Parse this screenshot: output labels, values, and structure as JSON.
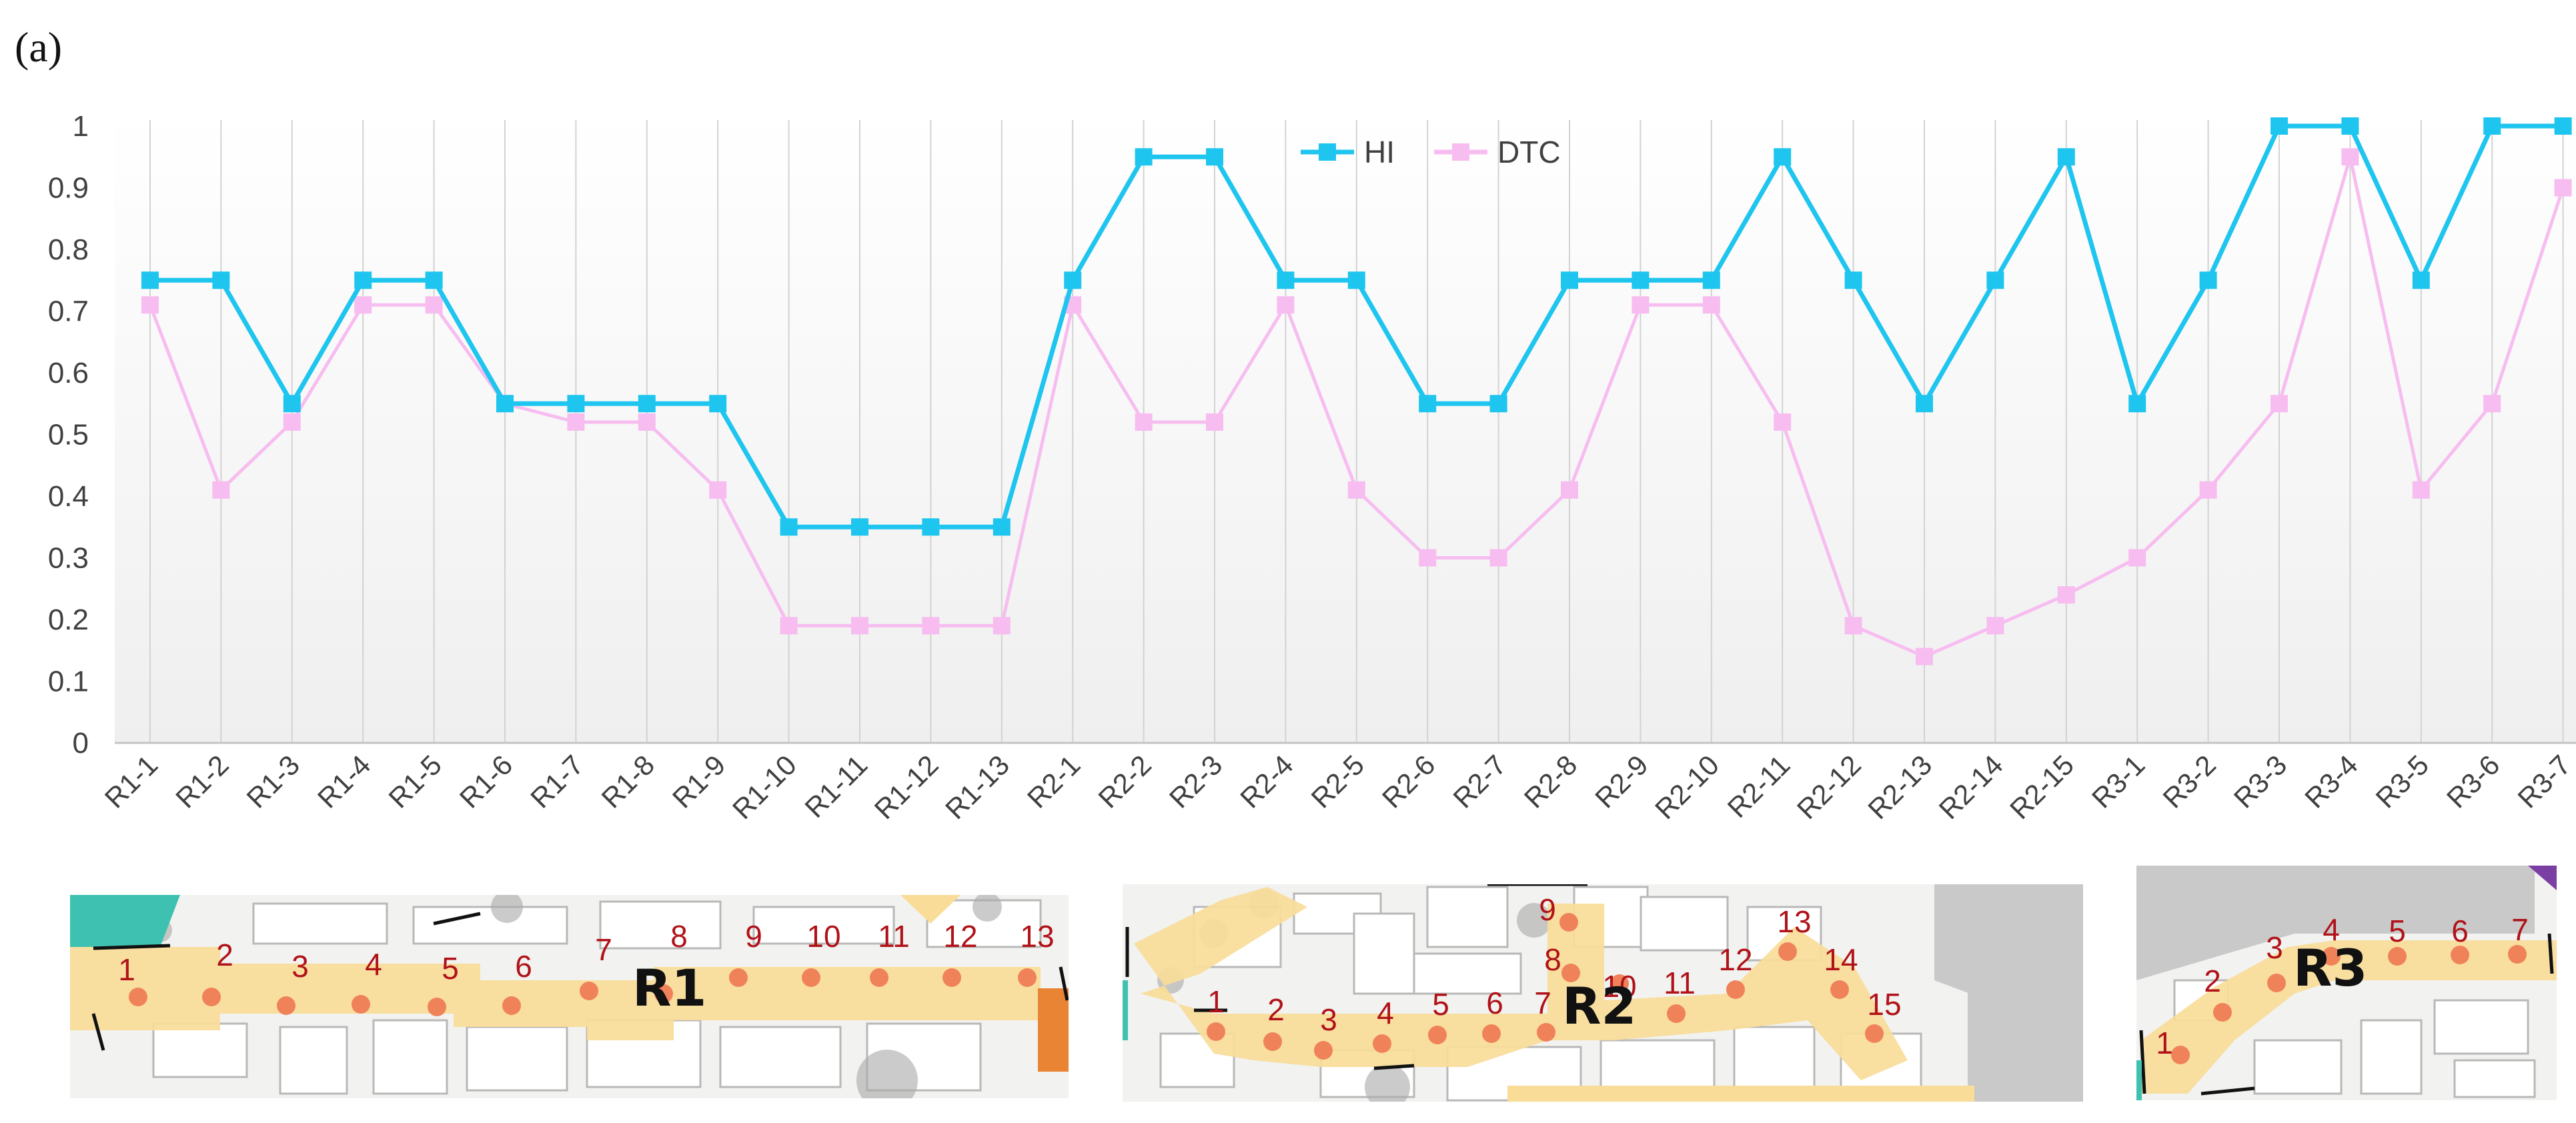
{
  "panel_label": "(a)",
  "chart_data": {
    "type": "line",
    "title": "",
    "xlabel": "",
    "ylabel": "",
    "ylim": [
      0,
      1
    ],
    "yticks": [
      "0",
      "0.1",
      "0.2",
      "0.3",
      "0.4",
      "0.5",
      "0.6",
      "0.7",
      "0.8",
      "0.9",
      "1"
    ],
    "grid": "vertical lines at categories",
    "legend_position": "top-center",
    "categories": [
      "R1-1",
      "R1-2",
      "R1-3",
      "R1-4",
      "R1-5",
      "R1-6",
      "R1-7",
      "R1-8",
      "R1-9",
      "R1-10",
      "R1-11",
      "R1-12",
      "R1-13",
      "R2-1",
      "R2-2",
      "R2-3",
      "R2-4",
      "R2-5",
      "R2-6",
      "R2-7",
      "R2-8",
      "R2-9",
      "R2-10",
      "R2-11",
      "R2-12",
      "R2-13",
      "R2-14",
      "R2-15",
      "R3-1",
      "R3-2",
      "R3-3",
      "R3-4",
      "R3-5",
      "R3-6",
      "R3-7"
    ],
    "series": [
      {
        "name": "HI",
        "color": "#1ec5ef",
        "marker": "square",
        "values": [
          0.75,
          0.75,
          0.55,
          0.75,
          0.75,
          0.55,
          0.55,
          0.55,
          0.55,
          0.35,
          0.35,
          0.35,
          0.35,
          0.75,
          0.95,
          0.95,
          0.75,
          0.75,
          0.55,
          0.55,
          0.75,
          0.75,
          0.75,
          0.95,
          0.75,
          0.55,
          0.75,
          0.95,
          0.55,
          0.75,
          1.0,
          1.0,
          0.75,
          1.0,
          1.0
        ]
      },
      {
        "name": "DTC",
        "color": "#f7bdf0",
        "marker": "square",
        "values": [
          0.71,
          0.41,
          0.52,
          0.71,
          0.71,
          0.55,
          0.52,
          0.52,
          0.41,
          0.19,
          0.19,
          0.19,
          0.19,
          0.71,
          0.52,
          0.52,
          0.71,
          0.41,
          0.3,
          0.3,
          0.41,
          0.71,
          0.71,
          0.52,
          0.19,
          0.14,
          0.19,
          0.24,
          0.3,
          0.41,
          0.55,
          0.95,
          0.41,
          0.55,
          0.9
        ]
      }
    ]
  },
  "maps": [
    {
      "label": "R1",
      "points": [
        "1",
        "2",
        "3",
        "4",
        "5",
        "6",
        "7",
        "8",
        "9",
        "10",
        "11",
        "12",
        "13"
      ]
    },
    {
      "label": "R2",
      "points": [
        "1",
        "2",
        "3",
        "4",
        "5",
        "6",
        "7",
        "8",
        "9",
        "10",
        "11",
        "12",
        "13",
        "14",
        "15"
      ]
    },
    {
      "label": "R3",
      "points": [
        "1",
        "2",
        "3",
        "4",
        "5",
        "6",
        "7"
      ]
    }
  ],
  "colors": {
    "walkway": "#f8dc98",
    "point": "#f0825a",
    "point_label": "#b01218",
    "block": "#c8c8c8",
    "teal": "#3ec1b0",
    "orange": "#e88434"
  }
}
